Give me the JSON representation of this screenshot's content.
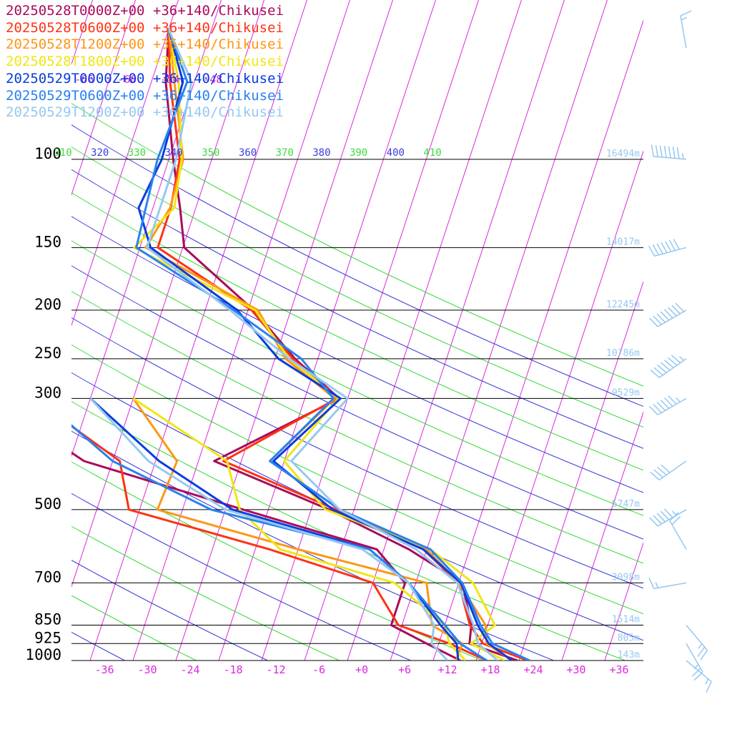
{
  "chart_data": {
    "type": "line",
    "legend_position": "top-left",
    "legend": [
      {
        "label": "20250528T0000Z+00 +36+140/Chikusei",
        "color": "#aa0a5a"
      },
      {
        "label": "20250528T0600Z+00 +36+140/Chikusei",
        "color": "#ff3214"
      },
      {
        "label": "20250528T1200Z+00 +36+140/Chikusei",
        "color": "#ff9614"
      },
      {
        "label": "20250528T1800Z+00 +36+140/Chikusei",
        "color": "#f0e614"
      },
      {
        "label": "20250529T0000Z+00 +36+140/Chikusei",
        "color": "#0a3cdc"
      },
      {
        "label": "20250529T0600Z+00 +36+140/Chikusei",
        "color": "#2882f0"
      },
      {
        "label": "20250529T1200Z+00 +36+140/Chikusei",
        "color": "#96c8f0"
      }
    ],
    "pressure_ticks": [
      100,
      150,
      200,
      250,
      300,
      500,
      700,
      850,
      925,
      1000
    ],
    "temperature_ticks": [
      "-36",
      "-30",
      "-24",
      "-18",
      "-12",
      "-6",
      "+0",
      "+6",
      "+12",
      "+18",
      "+24",
      "+30",
      "+36"
    ],
    "temperature_tick_values": [
      -36,
      -30,
      -24,
      -18,
      -12,
      -6,
      0,
      6,
      12,
      18,
      24,
      30,
      36
    ],
    "upper_temperature_ticks": [
      "-66",
      "-60",
      "-54",
      "-48"
    ],
    "upper_temperature_tick_values": [
      -66,
      -60,
      -54,
      -48
    ],
    "theta_labels": [
      "310",
      "320",
      "330",
      "340",
      "350",
      "360",
      "370",
      "380",
      "390",
      "400",
      "410"
    ],
    "height_labels": [
      {
        "p": 100,
        "text": "16494m"
      },
      {
        "p": 150,
        "text": "14017m"
      },
      {
        "p": 200,
        "text": "12245m"
      },
      {
        "p": 250,
        "text": "10786m"
      },
      {
        "p": 300,
        "text": "9529m"
      },
      {
        "p": 500,
        "text": "5747m"
      },
      {
        "p": 700,
        "text": "3098m"
      },
      {
        "p": 850,
        "text": "1514m"
      },
      {
        "p": 925,
        "text": "805m"
      },
      {
        "p": 1000,
        "text": "143m"
      }
    ],
    "grid": true,
    "series": [
      {
        "name": "20250528T0000Z+00 +36+140/Chikusei",
        "color": "#aa0a5a",
        "temperature": [
          [
            1000,
            21.8
          ],
          [
            925,
            14.3
          ],
          [
            850,
            13.7
          ],
          [
            700,
            10.5
          ],
          [
            600,
            1.5
          ],
          [
            500,
            -11.5
          ],
          [
            400,
            -29.8
          ],
          [
            300,
            -15.2
          ],
          [
            250,
            -23.2
          ],
          [
            200,
            -31.2
          ],
          [
            150,
            -43.8
          ],
          [
            125,
            -46.2
          ],
          [
            100,
            -49.4
          ]
        ],
        "dewpoint": [
          [
            1000,
            13.8
          ],
          [
            925,
            8.3
          ],
          [
            850,
            2.5
          ],
          [
            700,
            2.5
          ],
          [
            600,
            -3.0
          ],
          [
            500,
            -23.5
          ],
          [
            400,
            -48.0
          ],
          [
            300,
            -64.0
          ]
        ]
      },
      {
        "name": "20250528T0600Z+00 +36+140/Chikusei",
        "color": "#ff3214",
        "temperature": [
          [
            1000,
            23.2
          ],
          [
            925,
            16.2
          ],
          [
            850,
            13.5
          ],
          [
            700,
            10.0
          ],
          [
            600,
            3.5
          ],
          [
            500,
            -10.5
          ],
          [
            400,
            -28.5
          ],
          [
            300,
            -15.5
          ],
          [
            250,
            -23.5
          ],
          [
            200,
            -31.5
          ],
          [
            150,
            -47.5
          ],
          [
            125,
            -47.5
          ],
          [
            100,
            -48.5
          ]
        ],
        "dewpoint": [
          [
            1000,
            17.5
          ],
          [
            925,
            11.5
          ],
          [
            850,
            3.5
          ],
          [
            700,
            -2.0
          ],
          [
            600,
            -18.0
          ],
          [
            500,
            -39.5
          ],
          [
            400,
            -43.0
          ],
          [
            300,
            -58.0
          ]
        ]
      },
      {
        "name": "20250528T1200Z+00 +36+140/Chikusei",
        "color": "#ff9614",
        "temperature": [
          [
            1000,
            21.0
          ],
          [
            925,
            16.7
          ],
          [
            850,
            15.7
          ],
          [
            700,
            10.0
          ],
          [
            600,
            4.0
          ],
          [
            500,
            -10.0
          ],
          [
            400,
            -22.0
          ],
          [
            300,
            -15.8
          ],
          [
            250,
            -24.5
          ],
          [
            200,
            -30.6
          ],
          [
            150,
            -49.2
          ],
          [
            125,
            -47.6
          ],
          [
            100,
            -48.0
          ]
        ],
        "dewpoint": [
          [
            1000,
            13.2
          ],
          [
            925,
            13.3
          ],
          [
            850,
            8.2
          ],
          [
            700,
            5.5
          ],
          [
            600,
            -14.0
          ],
          [
            500,
            -35.5
          ],
          [
            400,
            -35.0
          ],
          [
            300,
            -44.0
          ]
        ]
      },
      {
        "name": "20250528T1800Z+00 +36+140/Chikusei",
        "color": "#f0e614",
        "temperature": [
          [
            1000,
            20.0
          ],
          [
            925,
            14.5
          ],
          [
            850,
            17.0
          ],
          [
            700,
            12.0
          ],
          [
            600,
            4.5
          ],
          [
            500,
            -12.0
          ],
          [
            400,
            -20.0
          ],
          [
            300,
            -15.3
          ],
          [
            250,
            -24.0
          ],
          [
            200,
            -31.0
          ],
          [
            150,
            -50.8
          ],
          [
            125,
            -47.0
          ],
          [
            100,
            -48.2
          ]
        ],
        "dewpoint": [
          [
            1000,
            14.5
          ],
          [
            925,
            11.5
          ],
          [
            850,
            10.0
          ],
          [
            700,
            1.0
          ],
          [
            600,
            -16.5
          ],
          [
            500,
            -24.0
          ],
          [
            400,
            -28.0
          ],
          [
            300,
            -44.0
          ]
        ]
      },
      {
        "name": "20250529T0000Z+00 +36+140/Chikusei",
        "color": "#0a3cdc",
        "temperature": [
          [
            1000,
            21.0
          ],
          [
            925,
            17.0
          ],
          [
            850,
            14.6
          ],
          [
            700,
            10.3
          ],
          [
            600,
            3.5
          ],
          [
            500,
            -11.0
          ],
          [
            400,
            -21.5
          ],
          [
            300,
            -15.0
          ],
          [
            250,
            -25.5
          ],
          [
            200,
            -33.5
          ],
          [
            150,
            -48.5
          ],
          [
            125,
            -52.0
          ],
          [
            100,
            -51.0
          ]
        ],
        "dewpoint": [
          [
            1000,
            13.5
          ],
          [
            925,
            12.5
          ],
          [
            850,
            9.4
          ],
          [
            700,
            3.0
          ],
          [
            600,
            -4.0
          ],
          [
            500,
            -25.0
          ],
          [
            400,
            -37.5
          ],
          [
            300,
            -50.0
          ]
        ]
      },
      {
        "name": "20250529T0600Z+00 +36+140/Chikusei",
        "color": "#2882f0",
        "temperature": [
          [
            1000,
            23.5
          ],
          [
            925,
            17.5
          ],
          [
            850,
            15.0
          ],
          [
            700,
            10.5
          ],
          [
            600,
            4.5
          ],
          [
            500,
            -10.0
          ],
          [
            400,
            -22.0
          ],
          [
            300,
            -16.0
          ],
          [
            250,
            -22.3
          ],
          [
            200,
            -34.0
          ],
          [
            150,
            -50.5
          ],
          [
            125,
            -51.0
          ],
          [
            100,
            -51.6
          ]
        ],
        "dewpoint": [
          [
            1000,
            17.5
          ],
          [
            925,
            13.0
          ],
          [
            850,
            10.0
          ],
          [
            700,
            3.0
          ],
          [
            600,
            -4.0
          ],
          [
            500,
            -28.0
          ],
          [
            400,
            -44.0
          ],
          [
            300,
            -57.0
          ]
        ]
      },
      {
        "name": "20250529T1200Z+00 +36+140/Chikusei",
        "color": "#96c8f0",
        "temperature": [
          [
            1000,
            19.0
          ],
          [
            925,
            15.5
          ],
          [
            850,
            14.0
          ],
          [
            700,
            9.8
          ],
          [
            600,
            2.5
          ],
          [
            500,
            -10.0
          ],
          [
            400,
            -19.0
          ],
          [
            300,
            -14.0
          ],
          [
            250,
            -24.0
          ],
          [
            200,
            -34.5
          ],
          [
            150,
            -49.0
          ],
          [
            125,
            -49.0
          ],
          [
            100,
            -49.0
          ]
        ],
        "dewpoint": [
          [
            1000,
            12.0
          ],
          [
            925,
            9.0
          ],
          [
            850,
            8.5
          ],
          [
            700,
            3.0
          ],
          [
            600,
            -5.0
          ],
          [
            500,
            -26.0
          ],
          [
            400,
            -39.0
          ],
          [
            300,
            -50.0
          ]
        ]
      }
    ],
    "wind_barbs": [
      {
        "p": 100,
        "speed_kt": 75,
        "direction_deg": 275
      },
      {
        "p": 150,
        "speed_kt": 70,
        "direction_deg": 255
      },
      {
        "p": 200,
        "speed_kt": 80,
        "direction_deg": 240
      },
      {
        "p": 250,
        "speed_kt": 75,
        "direction_deg": 235
      },
      {
        "p": 300,
        "speed_kt": 65,
        "direction_deg": 240
      },
      {
        "p": 400,
        "speed_kt": 40,
        "direction_deg": 235
      },
      {
        "p": 500,
        "speed_kt": 55,
        "direction_deg": 240
      },
      {
        "p": 600,
        "speed_kt": 20,
        "direction_deg": 330
      },
      {
        "p": 700,
        "speed_kt": 15,
        "direction_deg": 260
      },
      {
        "p": 850,
        "speed_kt": 25,
        "direction_deg": 140
      },
      {
        "p": 925,
        "speed_kt": 25,
        "direction_deg": 150
      },
      {
        "p": 1000,
        "speed_kt": 15,
        "direction_deg": 130
      },
      {
        "p": 60,
        "speed_kt": 15,
        "direction_deg": 350
      }
    ]
  }
}
